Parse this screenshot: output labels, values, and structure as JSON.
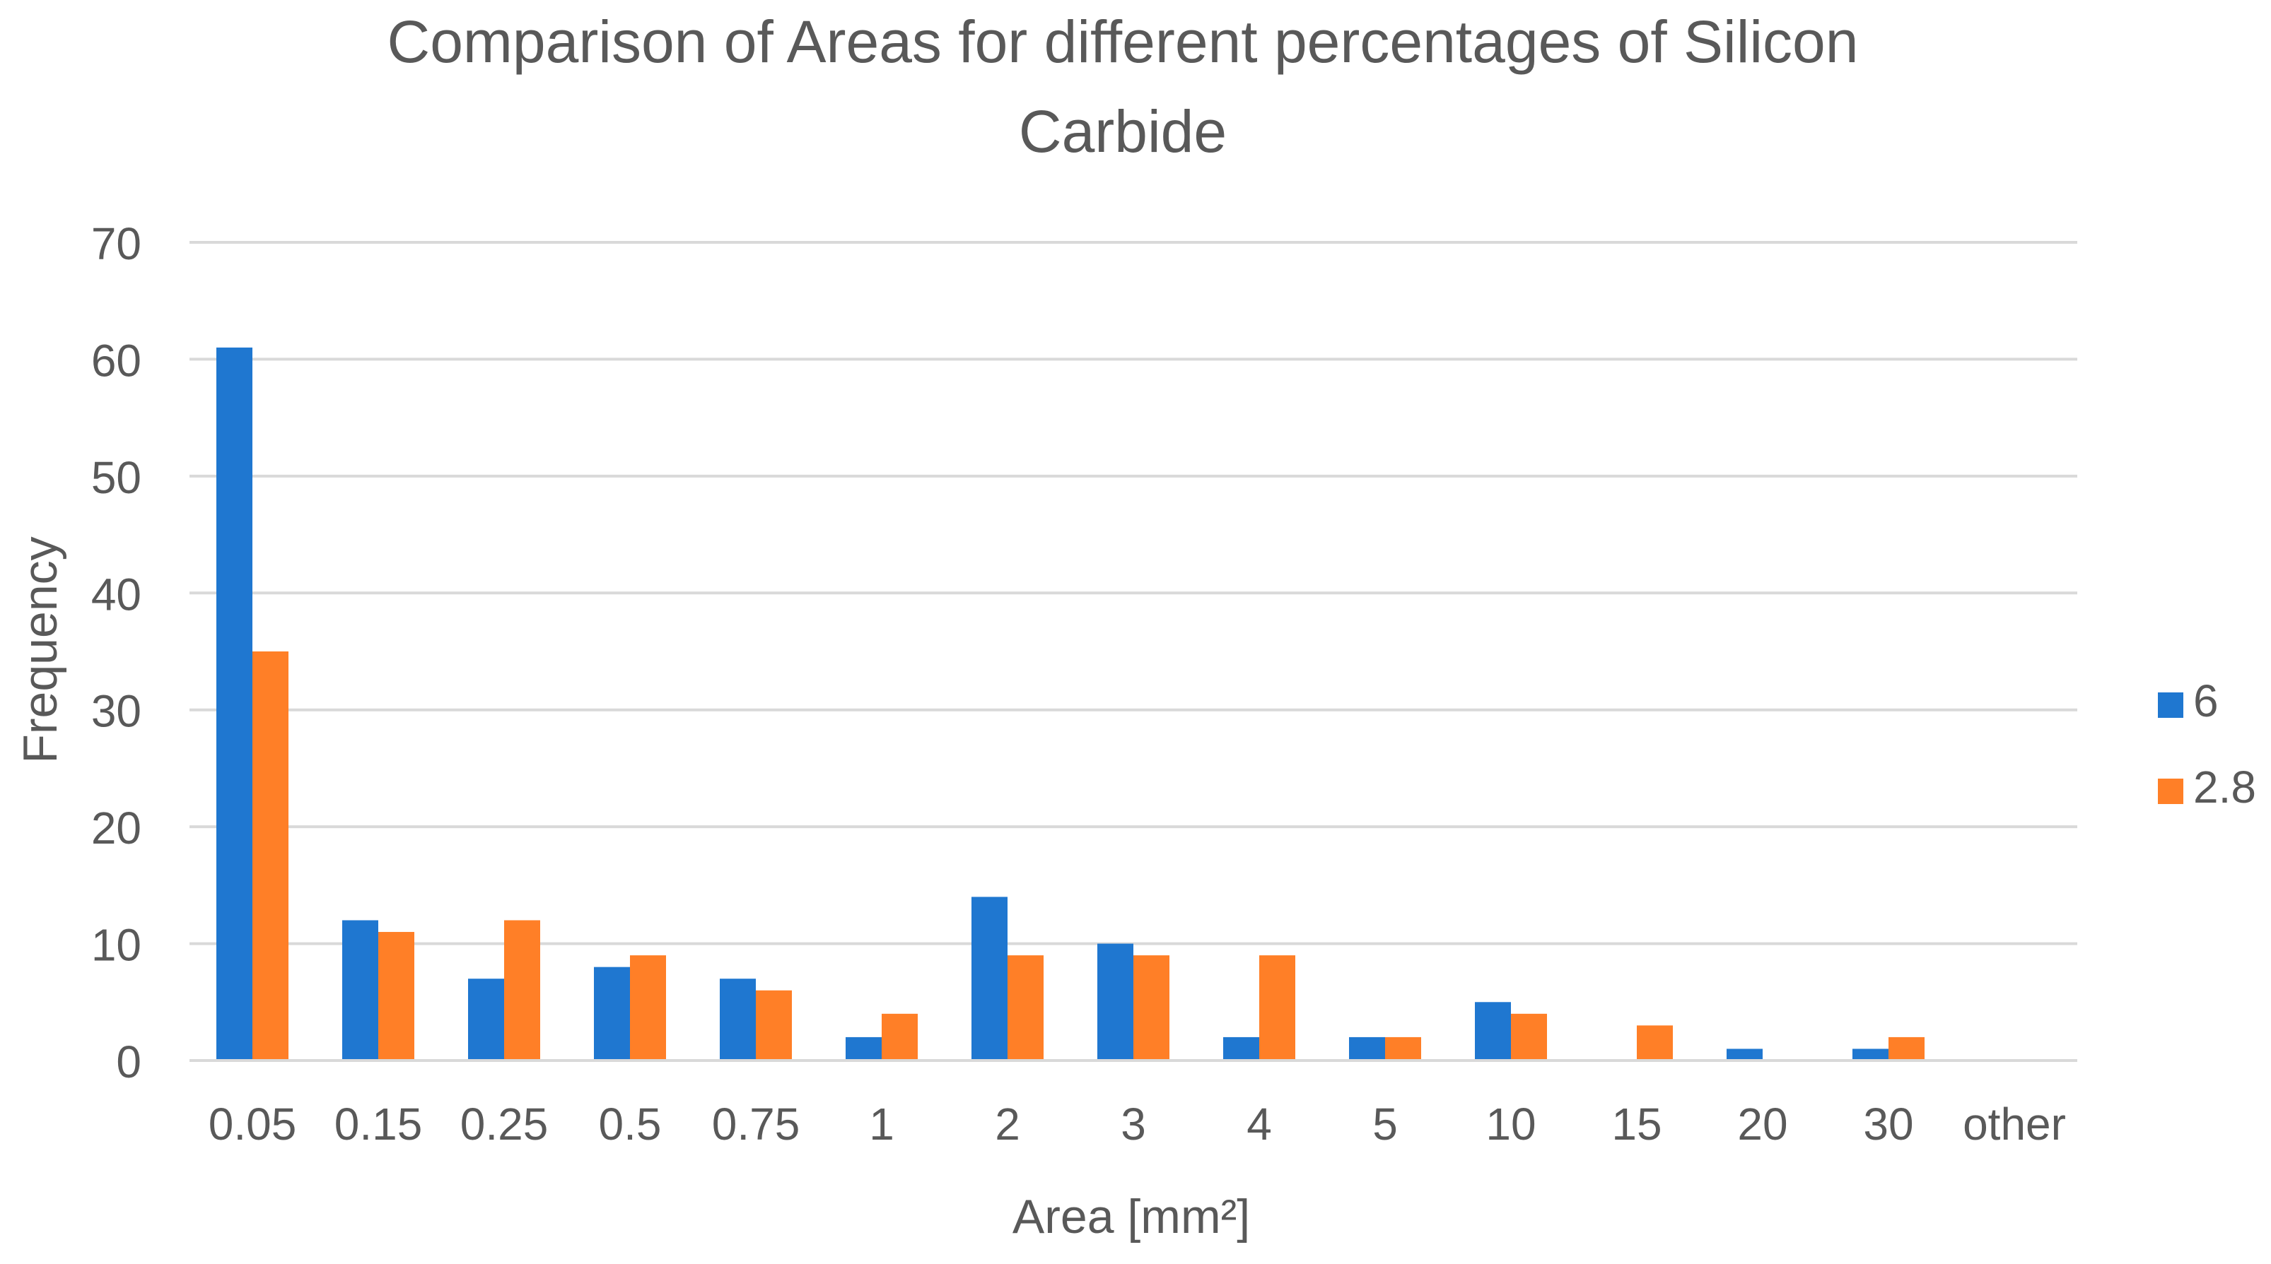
{
  "chart_data": {
    "type": "bar",
    "title_lines": [
      "Comparison of Areas for different percentages of Silicon",
      "Carbide"
    ],
    "xlabel": "Area [mm²]",
    "ylabel": "Frequency",
    "ylim": [
      0,
      70
    ],
    "yticks": [
      0,
      10,
      20,
      30,
      40,
      50,
      60,
      70
    ],
    "grid": true,
    "legend_position": "right",
    "categories": [
      "0.05",
      "0.15",
      "0.25",
      "0.5",
      "0.75",
      "1",
      "2",
      "3",
      "4",
      "5",
      "10",
      "15",
      "20",
      "30",
      "other"
    ],
    "series": [
      {
        "name": "6",
        "color": "#1F77D0",
        "values": [
          61,
          12,
          7,
          8,
          7,
          2,
          14,
          10,
          2,
          2,
          5,
          0,
          1,
          1,
          0
        ]
      },
      {
        "name": "2.8",
        "color": "#FF7F27",
        "values": [
          35,
          11,
          12,
          9,
          6,
          4,
          9,
          9,
          9,
          2,
          4,
          3,
          0,
          2,
          0
        ]
      }
    ]
  }
}
